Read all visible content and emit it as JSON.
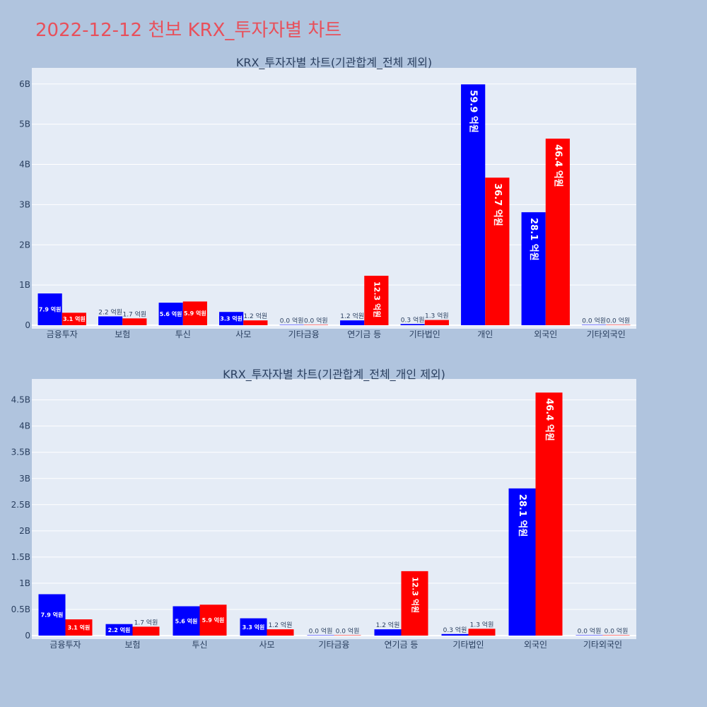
{
  "page": {
    "title": "2022-12-12 천보 KRX_투자자별 차트"
  },
  "colors": {
    "background": "#b0c4de",
    "plot_bg": "#e5ecf6",
    "buy": "#0000ff",
    "sell": "#ff0000",
    "title": "#e8505b",
    "text": "#2a3f5f"
  },
  "chart_data": [
    {
      "type": "bar",
      "title": "KRX_투자자별 차트(기관합계_전체 제외)",
      "categories": [
        "금융투자",
        "보험",
        "투신",
        "사모",
        "기타금융",
        "연기금 등",
        "기타법인",
        "개인",
        "외국인",
        "기타외국인"
      ],
      "series": [
        {
          "color": "#0000ff",
          "values": [
            790000000,
            220000000,
            560000000,
            330000000,
            0,
            120000000,
            30000000,
            5990000000,
            2810000000,
            0
          ],
          "labels": [
            "7.9 억원",
            "2.2 억원",
            "5.6 억원",
            "3.3 억원",
            "0.0 억원",
            "1.2 억원",
            "0.3 억원",
            "59.9 억원",
            "28.1 억원",
            "0.0 억원"
          ]
        },
        {
          "color": "#ff0000",
          "values": [
            310000000,
            170000000,
            590000000,
            120000000,
            0,
            1230000000,
            130000000,
            3670000000,
            4640000000,
            0
          ],
          "labels": [
            "3.1 억원",
            "1.7 억원",
            "5.9 억원",
            "1.2 억원",
            "0.0 억원",
            "12.3 억원",
            "1.3 억원",
            "36.7 억원",
            "46.4 억원",
            "0.0 억원"
          ]
        }
      ],
      "ylim": [
        0,
        6400000000
      ],
      "yticks": [
        0,
        1000000000,
        2000000000,
        3000000000,
        4000000000,
        5000000000,
        6000000000
      ],
      "ytick_labels": [
        "0",
        "1B",
        "2B",
        "3B",
        "4B",
        "5B",
        "6B"
      ],
      "grid": true
    },
    {
      "type": "bar",
      "title": "KRX_투자자별 차트(기관합계_전체_개인 제외)",
      "categories": [
        "금융투자",
        "보험",
        "투신",
        "사모",
        "기타금융",
        "연기금 등",
        "기타법인",
        "외국인",
        "기타외국인"
      ],
      "series": [
        {
          "color": "#0000ff",
          "values": [
            790000000,
            220000000,
            560000000,
            330000000,
            0,
            120000000,
            30000000,
            2810000000,
            0
          ],
          "labels": [
            "7.9 억원",
            "2.2 억원",
            "5.6 억원",
            "3.3 억원",
            "0.0 억원",
            "1.2 억원",
            "0.3 억원",
            "28.1 억원",
            "0.0 억원"
          ]
        },
        {
          "color": "#ff0000",
          "values": [
            310000000,
            170000000,
            590000000,
            120000000,
            0,
            1230000000,
            130000000,
            4640000000,
            0
          ],
          "labels": [
            "3.1 억원",
            "1.7 억원",
            "5.9 억원",
            "1.2 억원",
            "0.0 억원",
            "12.3 억원",
            "1.3 억원",
            "46.4 억원",
            "0.0 억원"
          ]
        }
      ],
      "ylim": [
        0,
        4900000000
      ],
      "yticks": [
        0,
        500000000,
        1000000000,
        1500000000,
        2000000000,
        2500000000,
        3000000000,
        3500000000,
        4000000000,
        4500000000
      ],
      "ytick_labels": [
        "0",
        "0.5B",
        "1B",
        "1.5B",
        "2B",
        "2.5B",
        "3B",
        "3.5B",
        "4B",
        "4.5B"
      ],
      "grid": true
    }
  ]
}
